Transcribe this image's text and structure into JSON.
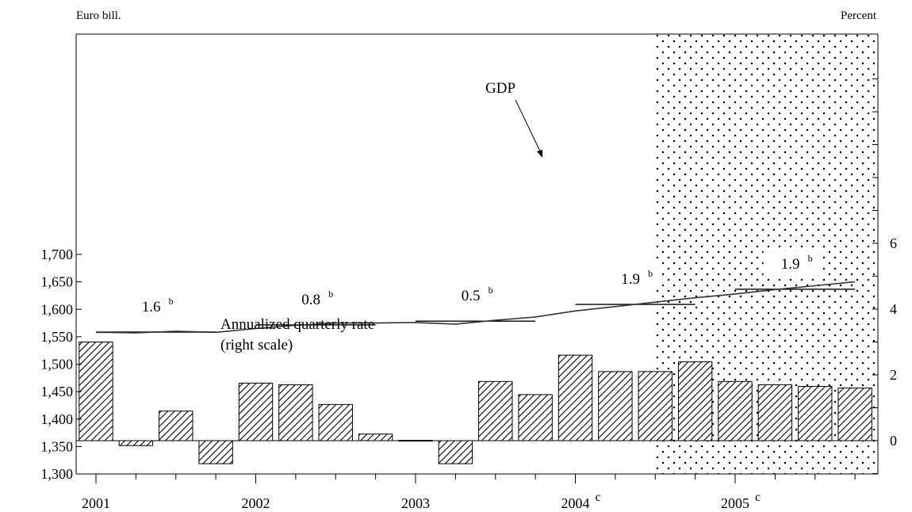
{
  "chart_data": {
    "type": "bar+line",
    "left_axis_label": "Euro bill.",
    "right_axis_label": "Percent",
    "left_ylim": [
      1300,
      1700
    ],
    "left_ticks": [
      "1,300",
      "1,350",
      "1,400",
      "1,450",
      "1,500",
      "1,550",
      "1,600",
      "1,650",
      "1,700"
    ],
    "right_ylim": [
      -1,
      12
    ],
    "right_ticks": [
      "0",
      "2",
      "4",
      "6"
    ],
    "x_start": 2001.0,
    "x_labels": [
      {
        "year": "2001",
        "suffix": ""
      },
      {
        "year": "2002",
        "suffix": ""
      },
      {
        "year": "2003",
        "suffix": ""
      },
      {
        "year": "2004",
        "suffix": "c"
      },
      {
        "year": "2005",
        "suffix": "c"
      }
    ],
    "forecast_start": 2004.5,
    "gdp_series": {
      "name": "GDP",
      "x": [
        2001.0,
        2001.25,
        2001.5,
        2001.75,
        2002.0,
        2002.25,
        2002.5,
        2002.75,
        2003.0,
        2003.25,
        2003.5,
        2003.75,
        2004.0,
        2004.25,
        2004.5,
        2004.75,
        2005.0,
        2005.25,
        2005.5,
        2005.75
      ],
      "values": [
        1558,
        1557,
        1560,
        1558,
        1565,
        1571,
        1575,
        1575,
        1576,
        1573,
        1580,
        1586,
        1597,
        1605,
        1613,
        1621,
        1628,
        1636,
        1643,
        1650
      ]
    },
    "rate_series": {
      "name": "Annualized quarterly rate",
      "x": [
        2001.0,
        2001.25,
        2001.5,
        2001.75,
        2002.0,
        2002.25,
        2002.5,
        2002.75,
        2003.0,
        2003.25,
        2003.5,
        2003.75,
        2004.0,
        2004.25,
        2004.5,
        2004.75,
        2005.0,
        2005.25,
        2005.5,
        2005.75
      ],
      "values": [
        3.0,
        -0.15,
        0.9,
        -0.7,
        1.75,
        1.7,
        1.1,
        0.2,
        0.0,
        -0.7,
        1.8,
        1.4,
        2.6,
        2.1,
        2.1,
        2.4,
        1.8,
        1.7,
        1.65,
        1.6
      ]
    },
    "annual_averages": [
      {
        "label": "1.6",
        "sup": "b",
        "from": 2001.0,
        "to": 2001.75,
        "value": 1558.5
      },
      {
        "label": "0.8",
        "sup": "b",
        "from": 2002.0,
        "to": 2002.75,
        "value": 1571.5
      },
      {
        "label": "0.5",
        "sup": "b",
        "from": 2003.0,
        "to": 2003.75,
        "value": 1578.5
      },
      {
        "label": "1.9",
        "sup": "b",
        "from": 2004.0,
        "to": 2004.75,
        "value": 1609
      },
      {
        "label": "1.9",
        "sup": "b",
        "from": 2005.0,
        "to": 2005.75,
        "value": 1636.5
      }
    ],
    "annotations": {
      "gdp_label": "GDP",
      "rate_label_line1": "Annualized quarterly rate",
      "rate_label_line2": "(right scale)"
    }
  }
}
